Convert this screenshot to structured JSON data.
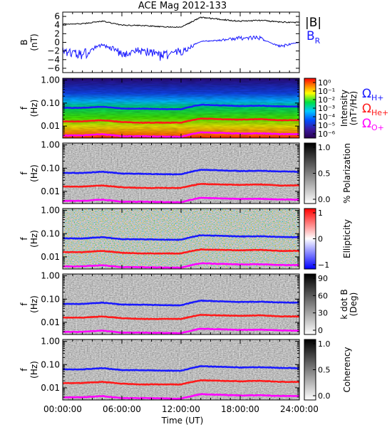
{
  "title": "ACE Mag 2012-133",
  "colors": {
    "total_field": "#000000",
    "radial_field": "#1a1aff",
    "h_plus": "#1a1aff",
    "he_plus": "#ff1a1a",
    "o_plus": "#ff00ff"
  },
  "legend": {
    "total_field": "|B|",
    "radial_field": "B",
    "radial_field_sub": "R",
    "h_plus": "Ω",
    "h_plus_sub": "H+",
    "he_plus": "Ω",
    "he_plus_sub": "He+",
    "o_plus": "Ω",
    "o_plus_sub": "O+"
  },
  "x_axis": {
    "label": "Time (UT)",
    "range_hours": [
      0,
      24
    ],
    "ticks": [
      {
        "value": 0,
        "label": "00:00:00"
      },
      {
        "value": 6,
        "label": "06:00:00"
      },
      {
        "value": 12,
        "label": "12:00:00"
      },
      {
        "value": 18,
        "label": "18:00:00"
      },
      {
        "value": 24,
        "label": "24:00:00"
      }
    ]
  },
  "panels": [
    {
      "id": "bfield",
      "ylabel": "B",
      "yunit": "(nT)",
      "ylim": [
        -7,
        7
      ],
      "yticks": [
        {
          "v": 6,
          "t": "6"
        },
        {
          "v": 4,
          "t": "4"
        },
        {
          "v": 2,
          "t": "2"
        },
        {
          "v": 0,
          "t": "0"
        },
        {
          "v": -2,
          "t": "−2"
        },
        {
          "v": -4,
          "t": "−4"
        },
        {
          "v": -6,
          "t": "−6"
        }
      ]
    },
    {
      "id": "intensity",
      "ylabel": "f",
      "yunit": "(Hz)",
      "cbar_label": "Intensity",
      "cbar_unit": "(nT²/Hz)",
      "cbar_ticks": [
        "10⁰",
        "10⁻¹",
        "10⁻²",
        "10⁻³",
        "10⁻⁴",
        "10⁻⁵",
        "10⁻⁶"
      ]
    },
    {
      "id": "polarization",
      "ylabel": "f",
      "yunit": "(Hz)",
      "cbar_label": "% Polarization",
      "cbar_unit": "",
      "cbar_ticks": [
        "1.0",
        "0.5",
        "0.0"
      ]
    },
    {
      "id": "ellipticity",
      "ylabel": "f",
      "yunit": "(Hz)",
      "cbar_label": "Ellipticity",
      "cbar_unit": "",
      "cbar_ticks": [
        "1",
        "0",
        "−1"
      ]
    },
    {
      "id": "kdotb",
      "ylabel": "f",
      "yunit": "(Hz)",
      "cbar_label": "k dot B",
      "cbar_unit": "(Deg)",
      "cbar_ticks": [
        "90",
        "60",
        "30",
        "0"
      ]
    },
    {
      "id": "coherency",
      "ylabel": "f",
      "yunit": "(Hz)",
      "cbar_label": "Coherency",
      "cbar_unit": "",
      "cbar_ticks": [
        "1.0",
        "0.5",
        "0.0"
      ]
    }
  ],
  "freq_ticks": [
    {
      "v": 1.0,
      "t": "1.00"
    },
    {
      "v": 0.1,
      "t": "0.10"
    },
    {
      "v": 0.01,
      "t": "0.01"
    }
  ],
  "chart_data": {
    "type": "heatmap",
    "title": "ACE Mag 2012-133",
    "xlabel": "Time (UT)",
    "x_hours": [
      0,
      2,
      4,
      6,
      8,
      10,
      12,
      14,
      16,
      18,
      20,
      22,
      24
    ],
    "total_field_nT": [
      4.2,
      4.3,
      4.9,
      4.0,
      3.9,
      3.6,
      3.5,
      5.8,
      5.3,
      4.9,
      5.1,
      4.7,
      4.6
    ],
    "radial_field_nT": [
      -2.0,
      -3.0,
      -0.5,
      -2.5,
      -2.0,
      -3.0,
      -2.2,
      0.2,
      0.5,
      1.0,
      1.0,
      -1.0,
      0.0
    ],
    "gyrofrequency_hz": {
      "h_plus": [
        0.062,
        0.062,
        0.07,
        0.058,
        0.057,
        0.055,
        0.054,
        0.085,
        0.08,
        0.075,
        0.077,
        0.072,
        0.07
      ],
      "he_plus": [
        0.016,
        0.016,
        0.018,
        0.015,
        0.014,
        0.014,
        0.014,
        0.021,
        0.02,
        0.019,
        0.02,
        0.018,
        0.018
      ],
      "o_plus": [
        0.0039,
        0.0039,
        0.0044,
        0.0036,
        0.0036,
        0.0035,
        0.0034,
        0.0053,
        0.005,
        0.0047,
        0.0048,
        0.0045,
        0.0044
      ]
    },
    "freq_range_hz": [
      0.003,
      1.2
    ],
    "series": [
      {
        "name": "|B|"
      },
      {
        "name": "B_R"
      },
      {
        "name": "Ω_H+"
      },
      {
        "name": "Ω_He+"
      },
      {
        "name": "Ω_O+"
      }
    ]
  }
}
